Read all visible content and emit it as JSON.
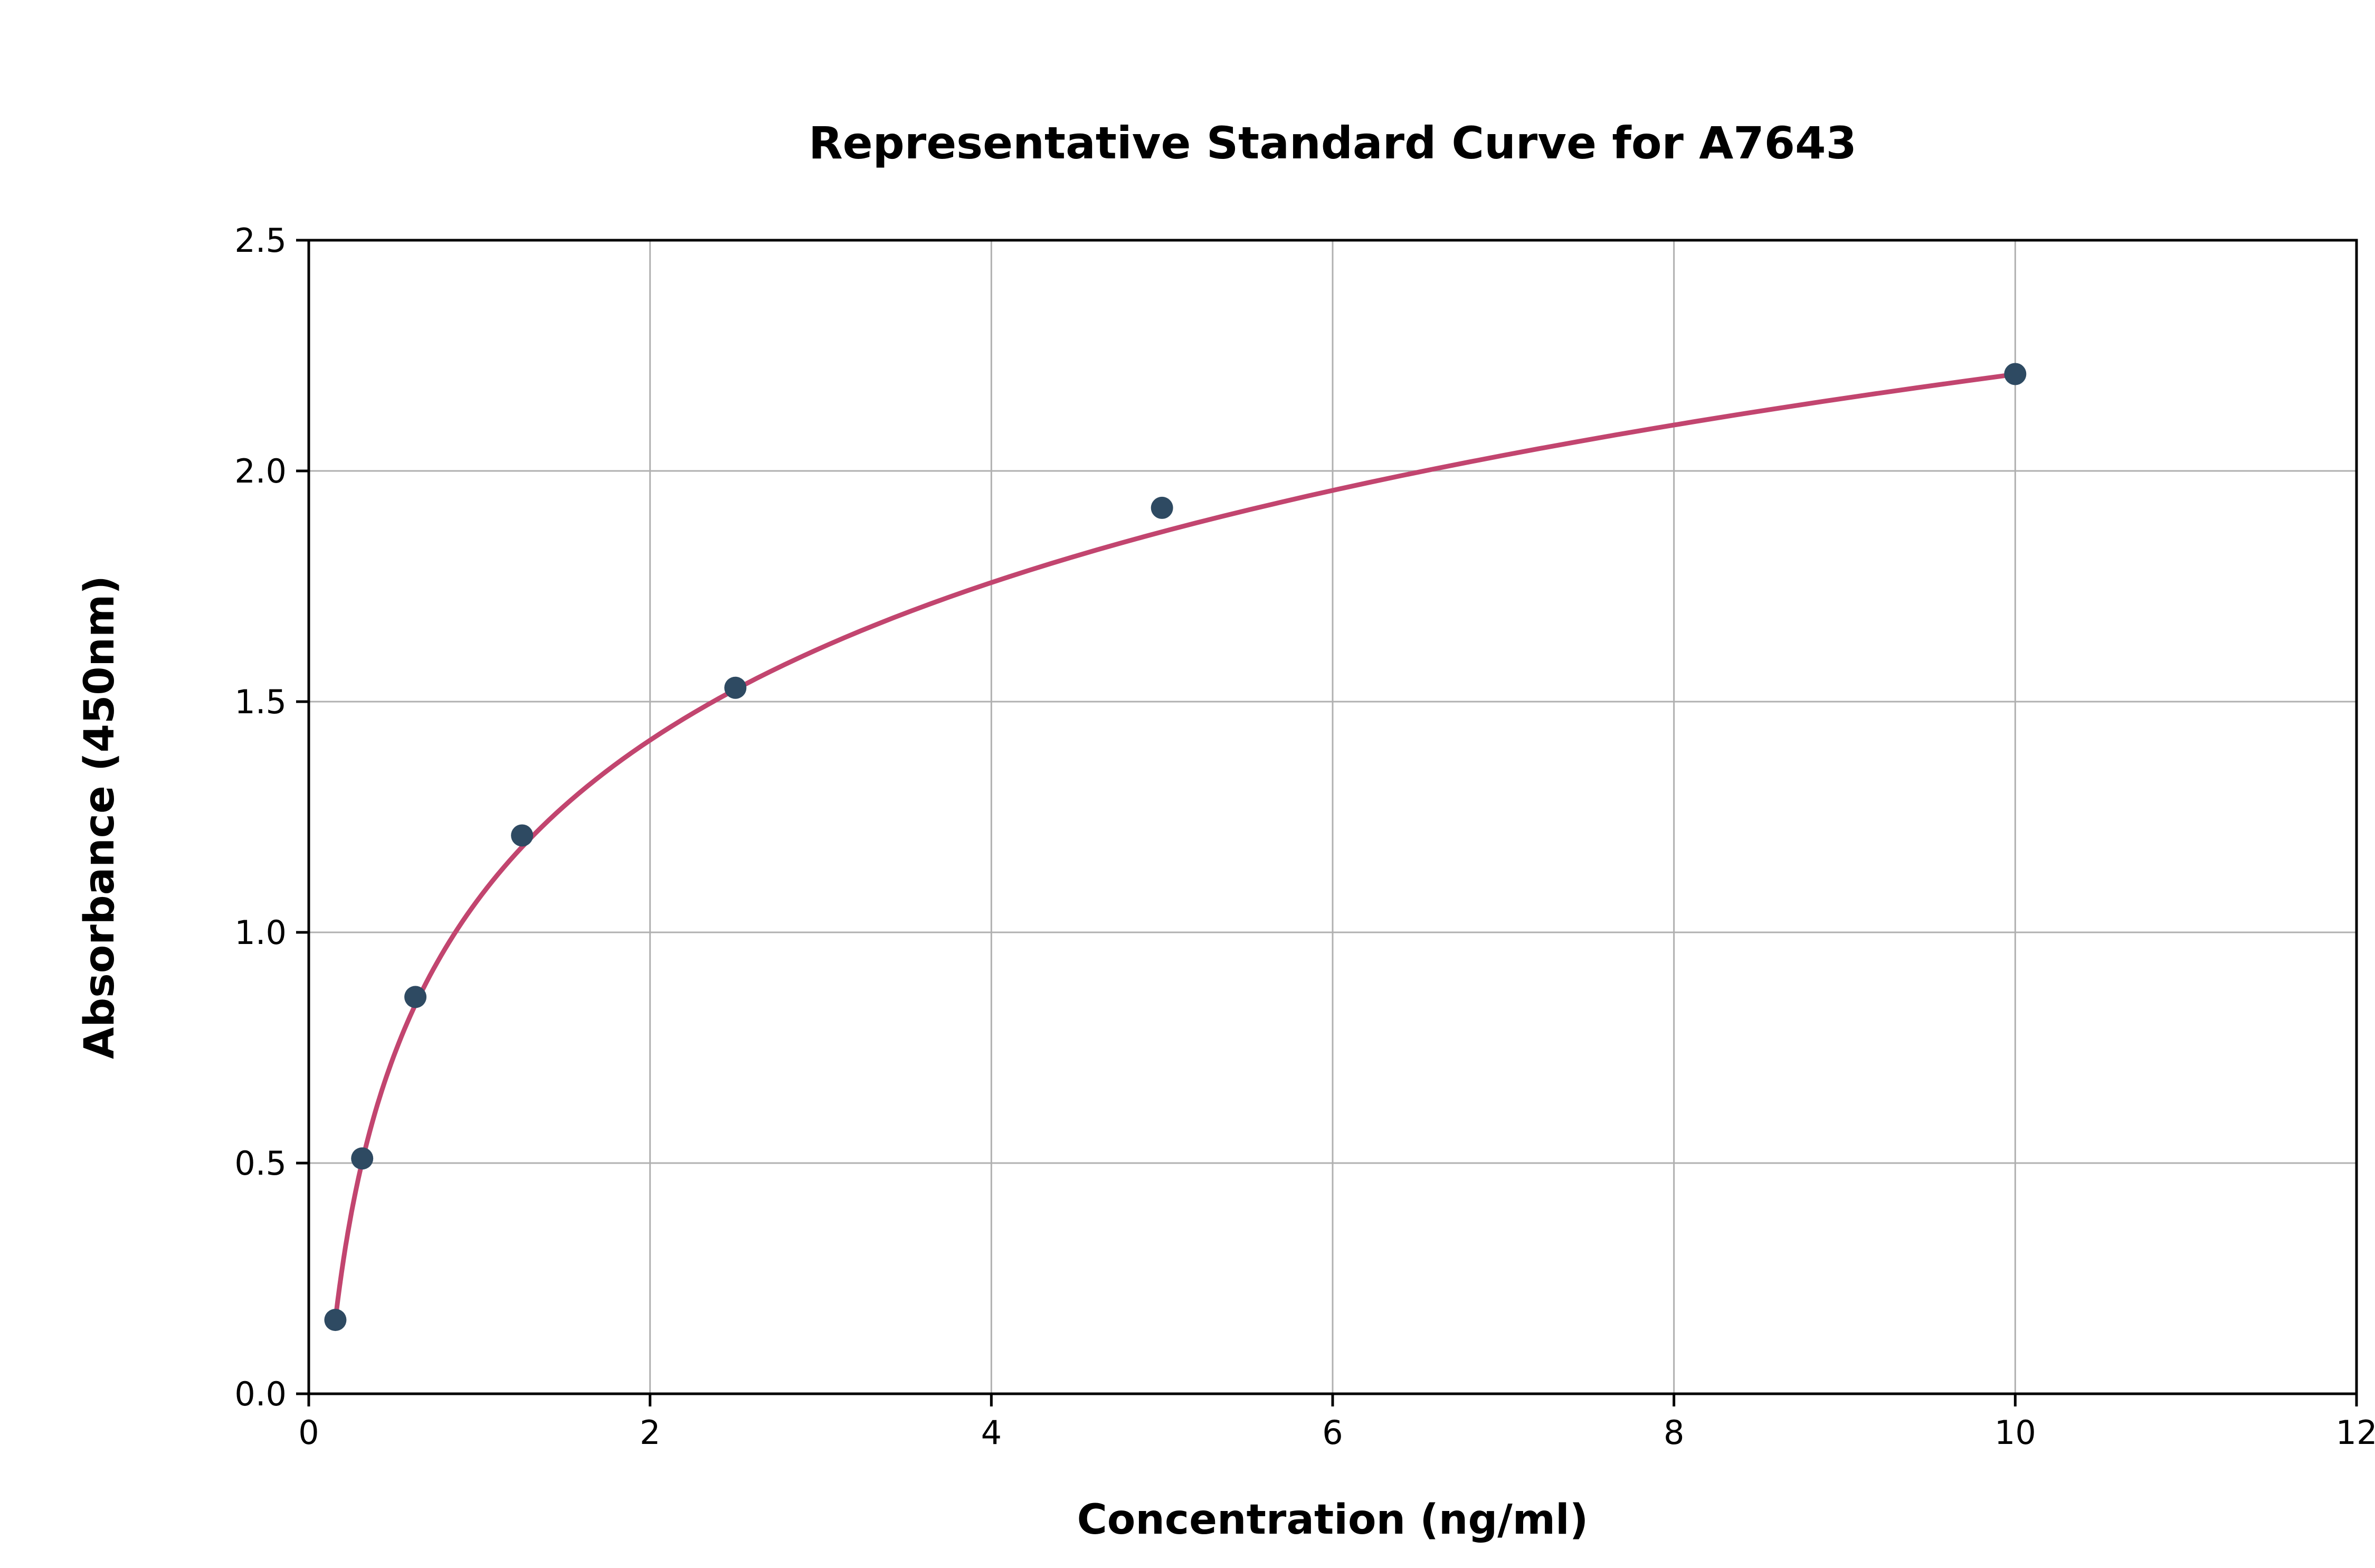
{
  "chart_data": {
    "type": "scatter",
    "title": "Representative Standard Curve for A7643",
    "xlabel": "Concentration (ng/ml)",
    "ylabel": "Absorbance (450nm)",
    "xlim": [
      0,
      12
    ],
    "ylim": [
      0,
      2.5
    ],
    "grid": true,
    "legend": "none",
    "x_ticks": {
      "values": [
        0,
        2,
        4,
        6,
        8,
        10,
        12
      ],
      "labels": [
        "0",
        "2",
        "4",
        "6",
        "8",
        "10",
        "12"
      ]
    },
    "y_ticks": {
      "values": [
        0,
        0.5,
        1.0,
        1.5,
        2.0,
        2.5
      ],
      "labels": [
        "0.0",
        "0.5",
        "1.0",
        "1.5",
        "2.0",
        "2.5"
      ]
    },
    "points": [
      {
        "x": 0.156,
        "y": 0.16
      },
      {
        "x": 0.313,
        "y": 0.51
      },
      {
        "x": 0.625,
        "y": 0.86
      },
      {
        "x": 1.25,
        "y": 1.21
      },
      {
        "x": 2.5,
        "y": 1.53
      },
      {
        "x": 5.0,
        "y": 1.92
      },
      {
        "x": 10.0,
        "y": 2.21
      }
    ],
    "fit_curve": {
      "type": "log",
      "a": 0.4927,
      "b": 1.075,
      "x_start": 0.156,
      "x_end": 10.0
    },
    "colors": {
      "point": "#2e4a62",
      "curve": "#c2456f",
      "grid": "#b0b0b0",
      "axis": "#000000",
      "background": "#ffffff"
    }
  }
}
